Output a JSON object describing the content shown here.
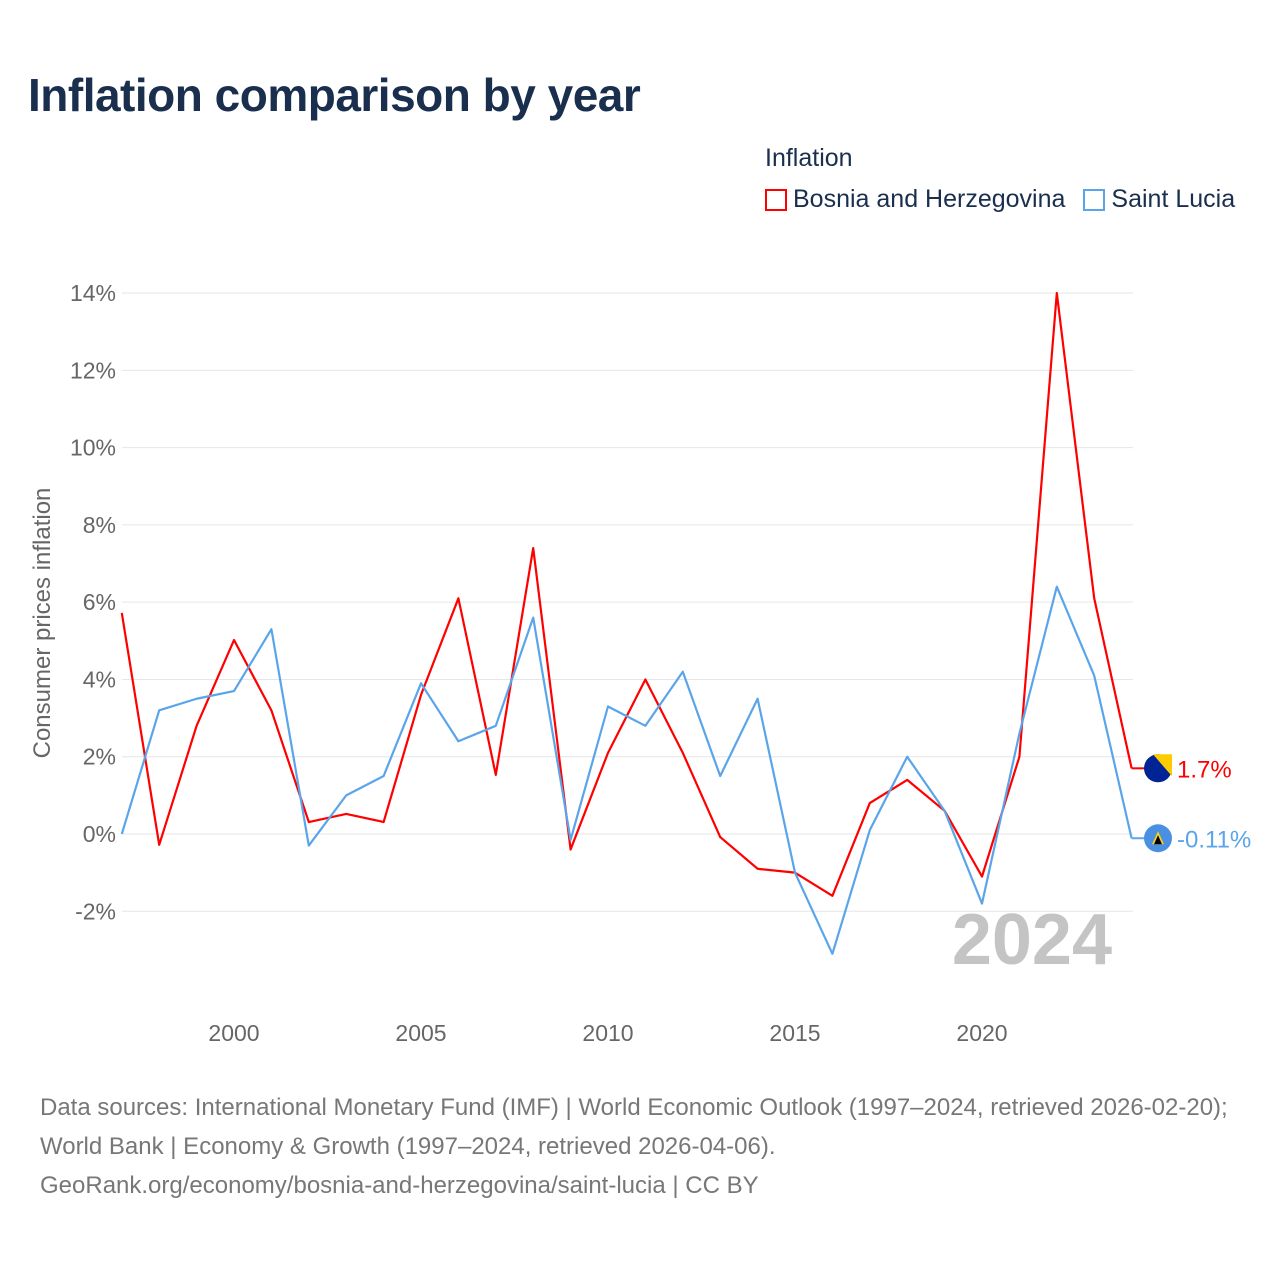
{
  "title": "Inflation comparison by year",
  "legend": {
    "title": "Inflation",
    "items": [
      {
        "label": "Bosnia and Herzegovina",
        "color": "#ff0000"
      },
      {
        "label": "Saint Lucia",
        "color": "#5aa5ea"
      }
    ]
  },
  "chart_data": {
    "type": "line",
    "title": "Inflation comparison by year",
    "xlabel": "",
    "ylabel": "Consumer prices inflation",
    "ylim": [
      -4,
      14.5
    ],
    "xlim": [
      1997,
      2024
    ],
    "yticks": [
      -2,
      0,
      2,
      4,
      6,
      8,
      10,
      12,
      14
    ],
    "ytick_labels": [
      "-2%",
      "0%",
      "2%",
      "4%",
      "6%",
      "8%",
      "10%",
      "12%",
      "14%"
    ],
    "xticks": [
      2000,
      2005,
      2010,
      2015,
      2020
    ],
    "xtick_labels": [
      "2000",
      "2005",
      "2010",
      "2015",
      "2020"
    ],
    "grid": true,
    "legend_position": "top-right",
    "year_watermark": "2024",
    "x": [
      1997,
      1998,
      1999,
      2000,
      2001,
      2002,
      2003,
      2004,
      2005,
      2006,
      2007,
      2008,
      2009,
      2010,
      2011,
      2012,
      2013,
      2014,
      2015,
      2016,
      2017,
      2018,
      2019,
      2020,
      2021,
      2022,
      2023,
      2024
    ],
    "series": [
      {
        "name": "Bosnia and Herzegovina",
        "color": "#ff0000",
        "end_label": "1.7%",
        "values": [
          5.72,
          -0.28,
          2.8,
          5.02,
          3.2,
          0.31,
          0.52,
          0.31,
          3.6,
          6.1,
          1.53,
          7.4,
          -0.4,
          2.1,
          4.0,
          2.1,
          -0.08,
          -0.9,
          -1.0,
          -1.6,
          0.8,
          1.4,
          0.6,
          -1.1,
          2.0,
          14.0,
          6.1,
          1.7
        ]
      },
      {
        "name": "Saint Lucia",
        "color": "#5aa5ea",
        "end_label": "-0.11%",
        "values": [
          0.0,
          3.2,
          3.5,
          3.7,
          5.3,
          -0.3,
          1.0,
          1.5,
          3.9,
          2.4,
          2.8,
          5.6,
          -0.15,
          3.3,
          2.8,
          4.2,
          1.5,
          3.5,
          -1.0,
          -3.1,
          0.1,
          2.0,
          0.6,
          -1.8,
          2.6,
          6.4,
          4.1,
          -0.11
        ]
      }
    ]
  },
  "footer": {
    "sources": "Data sources: International Monetary Fund (IMF) | World Economic Outlook (1997–2024, retrieved 2026-02-20); World Bank | Economy & Growth (1997–2024, retrieved 2026-04-06).",
    "credit": "GeoRank.org/economy/bosnia-and-herzegovina/saint-lucia | CC BY"
  }
}
